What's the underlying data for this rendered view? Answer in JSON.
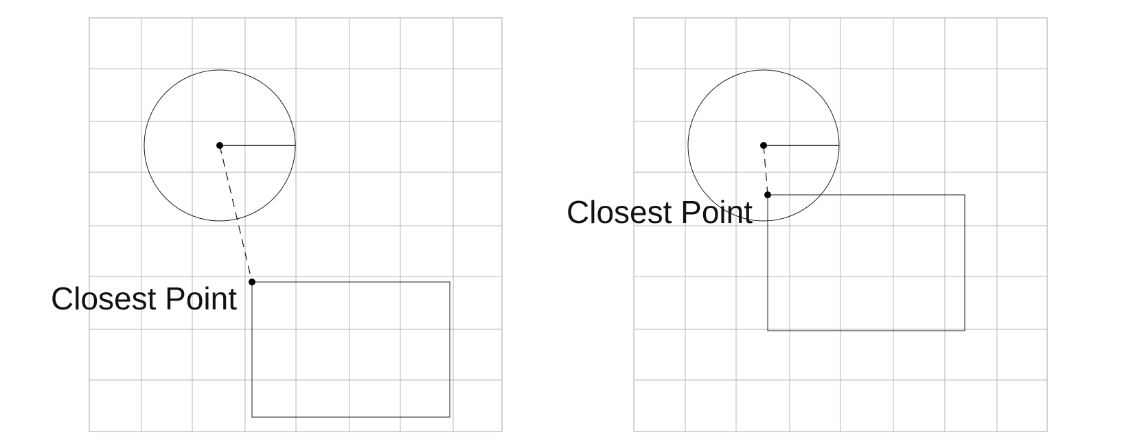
{
  "panels": [
    {
      "label": "Closest Point"
    },
    {
      "label": "Closest Point"
    }
  ]
}
